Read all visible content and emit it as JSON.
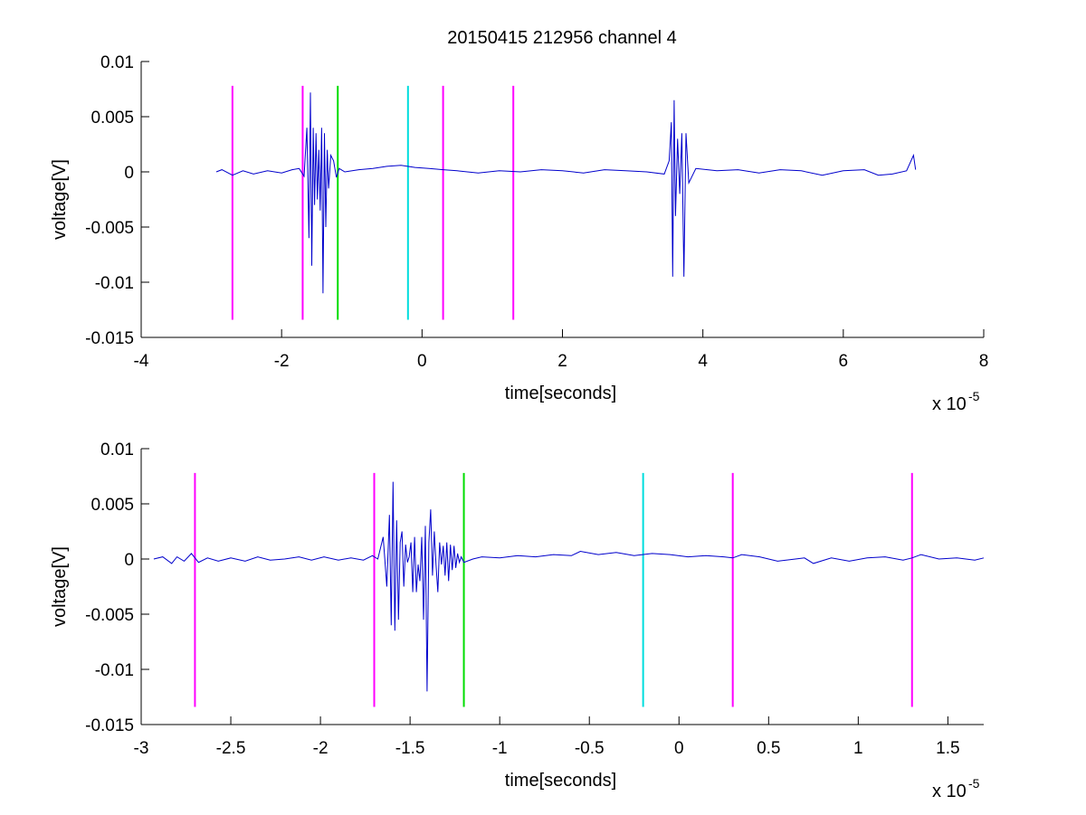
{
  "chart_data": [
    {
      "type": "line",
      "title": "20150415 212956 channel 4",
      "xlabel": "time[seconds]",
      "ylabel": "voltage[V]",
      "x_exponent_label": "x 10",
      "x_exponent": "-5",
      "xlim": [
        -4,
        8
      ],
      "ylim": [
        -0.015,
        0.01
      ],
      "x_ticks": [
        -4,
        -2,
        0,
        2,
        4,
        6,
        8
      ],
      "x_tick_labels": [
        "-4",
        "-2",
        "0",
        "2",
        "4",
        "6",
        "8"
      ],
      "y_ticks": [
        -0.015,
        -0.01,
        -0.005,
        0,
        0.005,
        0.01
      ],
      "y_tick_labels": [
        "-0.015",
        "-0.01",
        "-0.005",
        "0",
        "0.005",
        "0.01"
      ],
      "grid": false,
      "series": [
        {
          "color": "#0000cc",
          "x": [
            -2.93,
            -2.85,
            -2.7,
            -2.55,
            -2.4,
            -2.2,
            -2.0,
            -1.85,
            -1.75,
            -1.68,
            -1.64,
            -1.61,
            -1.59,
            -1.57,
            -1.55,
            -1.53,
            -1.51,
            -1.49,
            -1.47,
            -1.45,
            -1.43,
            -1.41,
            -1.39,
            -1.37,
            -1.35,
            -1.33,
            -1.3,
            -1.26,
            -1.22,
            -1.18,
            -1.1,
            -0.9,
            -0.7,
            -0.5,
            -0.3,
            -0.1,
            0.1,
            0.3,
            0.5,
            0.8,
            1.1,
            1.4,
            1.7,
            2.0,
            2.3,
            2.6,
            2.9,
            3.2,
            3.45,
            3.52,
            3.55,
            3.57,
            3.59,
            3.61,
            3.64,
            3.67,
            3.7,
            3.73,
            3.76,
            3.8,
            3.9,
            4.2,
            4.5,
            4.8,
            5.1,
            5.4,
            5.7,
            6.0,
            6.3,
            6.5,
            6.7,
            6.9,
            7.0,
            7.03
          ],
          "y": [
            0.0,
            0.0002,
            -0.0003,
            0.0001,
            -0.0002,
            0.0001,
            -0.0001,
            0.0002,
            0.0003,
            -0.0004,
            0.004,
            -0.006,
            0.0072,
            -0.0085,
            0.004,
            -0.003,
            0.0035,
            -0.0025,
            0.002,
            -0.0035,
            0.004,
            -0.011,
            0.0035,
            -0.005,
            0.002,
            -0.0015,
            0.0015,
            0.001,
            -0.0005,
            0.0003,
            0.0,
            0.0002,
            0.0003,
            0.0005,
            0.0006,
            0.0004,
            0.0003,
            0.0002,
            0.0001,
            -0.0001,
            0.0001,
            0.0,
            0.0002,
            0.0001,
            -0.0001,
            0.0002,
            0.0001,
            0.0,
            -0.0002,
            0.001,
            0.0045,
            -0.0095,
            0.0065,
            -0.004,
            0.003,
            -0.002,
            0.0035,
            -0.0095,
            0.0035,
            -0.001,
            0.0003,
            0.0001,
            0.0002,
            -0.0001,
            0.0002,
            0.0001,
            -0.0003,
            0.0001,
            0.0002,
            -0.0003,
            -0.0002,
            0.0001,
            0.0015,
            0.0002
          ]
        }
      ],
      "markers": [
        {
          "x": -2.7,
          "color": "#ff00ff"
        },
        {
          "x": -1.7,
          "color": "#ff00ff"
        },
        {
          "x": -1.2,
          "color": "#00dd00"
        },
        {
          "x": -0.2,
          "color": "#00dddd"
        },
        {
          "x": 0.3,
          "color": "#ff00ff"
        },
        {
          "x": 1.3,
          "color": "#ff00ff"
        }
      ],
      "marker_y_range": [
        -0.0134,
        0.0078
      ]
    },
    {
      "type": "line",
      "xlabel": "time[seconds]",
      "ylabel": "voltage[V]",
      "x_exponent_label": "x 10",
      "x_exponent": "-5",
      "xlim": [
        -3.0,
        1.7
      ],
      "ylim": [
        -0.015,
        0.01
      ],
      "x_ticks": [
        -3,
        -2.5,
        -2,
        -1.5,
        -1,
        -0.5,
        0,
        0.5,
        1,
        1.5
      ],
      "x_tick_labels": [
        "-3",
        "-2.5",
        "-2",
        "-1.5",
        "-1",
        "-0.5",
        "0",
        "0.5",
        "1",
        "1.5"
      ],
      "y_ticks": [
        -0.015,
        -0.01,
        -0.005,
        0,
        0.005,
        0.01
      ],
      "y_tick_labels": [
        "-0.015",
        "-0.01",
        "-0.005",
        "0",
        "0.005",
        "0.01"
      ],
      "grid": false,
      "series": [
        {
          "color": "#0000cc",
          "x": [
            -2.93,
            -2.88,
            -2.83,
            -2.8,
            -2.76,
            -2.72,
            -2.68,
            -2.63,
            -2.57,
            -2.5,
            -2.42,
            -2.35,
            -2.28,
            -2.2,
            -2.12,
            -2.05,
            -1.98,
            -1.9,
            -1.83,
            -1.76,
            -1.71,
            -1.68,
            -1.65,
            -1.63,
            -1.615,
            -1.605,
            -1.595,
            -1.585,
            -1.575,
            -1.565,
            -1.555,
            -1.545,
            -1.535,
            -1.525,
            -1.515,
            -1.505,
            -1.495,
            -1.485,
            -1.475,
            -1.465,
            -1.455,
            -1.445,
            -1.435,
            -1.425,
            -1.415,
            -1.405,
            -1.395,
            -1.385,
            -1.375,
            -1.365,
            -1.355,
            -1.345,
            -1.335,
            -1.325,
            -1.315,
            -1.305,
            -1.295,
            -1.285,
            -1.275,
            -1.265,
            -1.255,
            -1.245,
            -1.235,
            -1.225,
            -1.215,
            -1.2,
            -1.15,
            -1.1,
            -1.0,
            -0.9,
            -0.8,
            -0.7,
            -0.6,
            -0.55,
            -0.45,
            -0.35,
            -0.25,
            -0.15,
            -0.05,
            0.05,
            0.15,
            0.25,
            0.3,
            0.35,
            0.45,
            0.55,
            0.65,
            0.7,
            0.75,
            0.85,
            0.95,
            1.05,
            1.15,
            1.25,
            1.3,
            1.35,
            1.45,
            1.55,
            1.65,
            1.7
          ],
          "y": [
            0.0,
            0.0002,
            -0.0004,
            0.0002,
            -0.0002,
            0.0005,
            -0.0003,
            0.0001,
            -0.0002,
            0.0001,
            -0.0002,
            0.0002,
            -0.0001,
            0.0,
            0.0002,
            -0.0001,
            0.0002,
            -0.0001,
            0.0001,
            -0.0001,
            0.0003,
            0.0,
            0.002,
            -0.0025,
            0.004,
            -0.006,
            0.007,
            -0.0065,
            0.0035,
            -0.0055,
            0.0015,
            0.0025,
            -0.0025,
            0.0013,
            -0.0003,
            0.0002,
            0.0015,
            -0.003,
            0.002,
            -0.003,
            -0.0005,
            -0.002,
            0.002,
            -0.0055,
            0.003,
            -0.012,
            0.0015,
            0.0045,
            -0.0015,
            0.0025,
            -0.0005,
            -0.003,
            0.0015,
            -0.0005,
            0.0012,
            -0.0015,
            0.0015,
            -0.002,
            0.0013,
            -0.001,
            0.0012,
            -0.0008,
            0.0005,
            -0.0003,
            0.0002,
            -0.0003,
            0.0,
            0.0002,
            0.0001,
            0.0003,
            0.0002,
            0.0004,
            0.0003,
            0.0007,
            0.0004,
            0.0006,
            0.0003,
            0.0005,
            0.0004,
            0.0002,
            0.0003,
            0.0002,
            0.0001,
            0.0004,
            0.0002,
            -0.0002,
            0.0,
            0.0001,
            -0.0004,
            0.0001,
            -0.0002,
            0.0001,
            0.0002,
            -0.0001,
            0.0001,
            0.0004,
            0.0,
            0.0001,
            -0.0001,
            0.0001
          ]
        }
      ],
      "markers": [
        {
          "x": -2.7,
          "color": "#ff00ff"
        },
        {
          "x": -1.7,
          "color": "#ff00ff"
        },
        {
          "x": -1.2,
          "color": "#00dd00"
        },
        {
          "x": -0.2,
          "color": "#00dddd"
        },
        {
          "x": 0.3,
          "color": "#ff00ff"
        },
        {
          "x": 1.3,
          "color": "#ff00ff"
        }
      ],
      "marker_y_range": [
        -0.0134,
        0.0078
      ]
    }
  ]
}
